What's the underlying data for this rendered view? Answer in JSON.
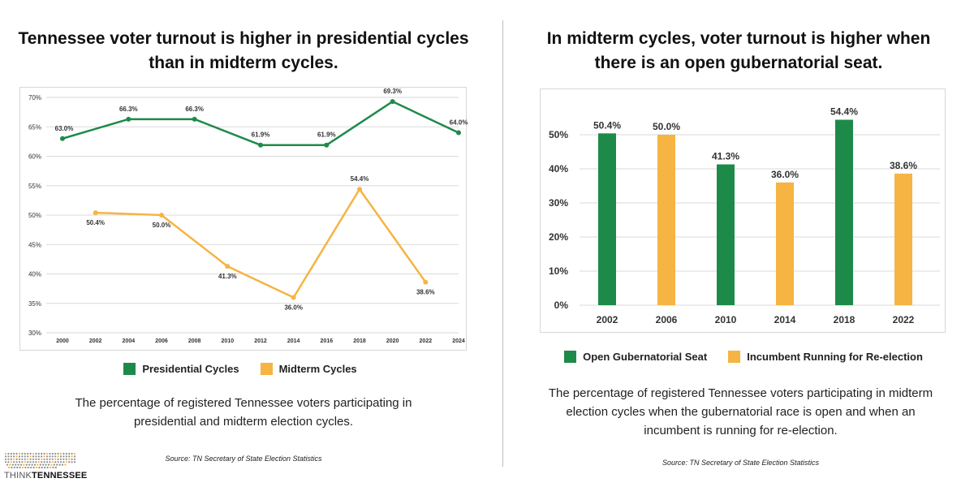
{
  "left": {
    "title": "Tennessee voter turnout is higher in presidential cycles\nthan in midterm cycles.",
    "legend": [
      {
        "label": "Presidential Cycles",
        "color": "#1e8a4a"
      },
      {
        "label": "Midterm Cycles",
        "color": "#f6b443"
      }
    ],
    "description": "The percentage of registered Tennessee voters participating in\npresidential and midterm election cycles.",
    "source": "Source: TN Secretary of State Election Statistics"
  },
  "right": {
    "title": "In midterm cycles, voter turnout is higher when\nthere is an open gubernatorial seat.",
    "legend": [
      {
        "label": "Open Gubernatorial Seat",
        "color": "#1e8a4a"
      },
      {
        "label": "Incumbent Running for Re-election",
        "color": "#f6b443"
      }
    ],
    "description": "The percentage of registered Tennessee voters participating in midterm\nelection cycles when the gubernatorial race is open and when an\nincumbent is running for re-election.",
    "source": "Source: TN Secretary of State Election Statistics"
  },
  "logo": {
    "prefix": "THINK",
    "name": "TENNESSEE"
  },
  "chart_data": [
    {
      "type": "line",
      "title": "Tennessee voter turnout is higher in presidential cycles than in midterm cycles.",
      "x": [
        "2000",
        "2002",
        "2004",
        "2006",
        "2008",
        "2010",
        "2012",
        "2014",
        "2016",
        "2018",
        "2020",
        "2022",
        "2024"
      ],
      "ylim": [
        30,
        70
      ],
      "yticks": [
        "30%",
        "35%",
        "40%",
        "45%",
        "50%",
        "55%",
        "60%",
        "65%",
        "70%"
      ],
      "grid": true,
      "series": [
        {
          "name": "Presidential Cycles",
          "color": "#1e8a4a",
          "points": [
            {
              "x": "2000",
              "y": 63.0,
              "label": "63.0%"
            },
            {
              "x": "2004",
              "y": 66.3,
              "label": "66.3%"
            },
            {
              "x": "2008",
              "y": 66.3,
              "label": "66.3%"
            },
            {
              "x": "2012",
              "y": 61.9,
              "label": "61.9%"
            },
            {
              "x": "2016",
              "y": 61.9,
              "label": "61.9%"
            },
            {
              "x": "2020",
              "y": 69.3,
              "label": "69.3%"
            },
            {
              "x": "2024",
              "y": 64.0,
              "label": "64.0%"
            }
          ]
        },
        {
          "name": "Midterm Cycles",
          "color": "#f6b443",
          "points": [
            {
              "x": "2002",
              "y": 50.4,
              "label": "50.4%"
            },
            {
              "x": "2006",
              "y": 50.0,
              "label": "50.0%"
            },
            {
              "x": "2010",
              "y": 41.3,
              "label": "41.3%"
            },
            {
              "x": "2014",
              "y": 36.0,
              "label": "36.0%"
            },
            {
              "x": "2018",
              "y": 54.4,
              "label": "54.4%"
            },
            {
              "x": "2022",
              "y": 38.6,
              "label": "38.6%"
            }
          ]
        }
      ]
    },
    {
      "type": "bar",
      "title": "In midterm cycles, voter turnout is higher when there is an open gubernatorial seat.",
      "categories": [
        "2002",
        "2006",
        "2010",
        "2014",
        "2018",
        "2022"
      ],
      "values": [
        50.4,
        50.0,
        41.3,
        36.0,
        54.4,
        38.6
      ],
      "labels": [
        "50.4%",
        "50.0%",
        "41.3%",
        "36.0%",
        "54.4%",
        "38.6%"
      ],
      "groups": [
        "Open Gubernatorial Seat",
        "Incumbent Running for Re-election",
        "Open Gubernatorial Seat",
        "Incumbent Running for Re-election",
        "Open Gubernatorial Seat",
        "Incumbent Running for Re-election"
      ],
      "colors": [
        "#1e8a4a",
        "#f6b443",
        "#1e8a4a",
        "#f6b443",
        "#1e8a4a",
        "#f6b443"
      ],
      "ylim": [
        0,
        60
      ],
      "yticks": [
        "0%",
        "10%",
        "20%",
        "30%",
        "40%",
        "50%"
      ],
      "grid": true
    }
  ]
}
